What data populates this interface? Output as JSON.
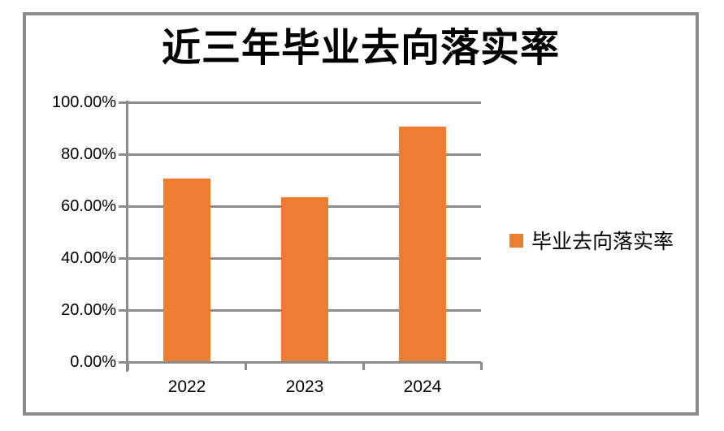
{
  "chart_data": {
    "type": "bar",
    "title": "近三年毕业去向落实率",
    "categories": [
      "2022",
      "2023",
      "2024"
    ],
    "series": [
      {
        "name": "毕业去向落实率",
        "values": [
          70.6,
          63.4,
          90.6
        ]
      }
    ],
    "value_unit": "percent",
    "ylim": [
      0,
      100
    ],
    "y_ticks": [
      {
        "value": 0,
        "label": "0.00%"
      },
      {
        "value": 20,
        "label": "20.00%"
      },
      {
        "value": 40,
        "label": "40.00%"
      },
      {
        "value": 60,
        "label": "60.00%"
      },
      {
        "value": 80,
        "label": "80.00%"
      },
      {
        "value": 100,
        "label": "100.00%"
      }
    ],
    "grid": true,
    "legend_position": "right",
    "colors": {
      "bar": "#ED7D31",
      "axis": "#8C8C8C",
      "gridline": "#8C8C8C",
      "frame": "#8C8C8C",
      "text": "#000000",
      "background": "#FFFFFF"
    }
  }
}
